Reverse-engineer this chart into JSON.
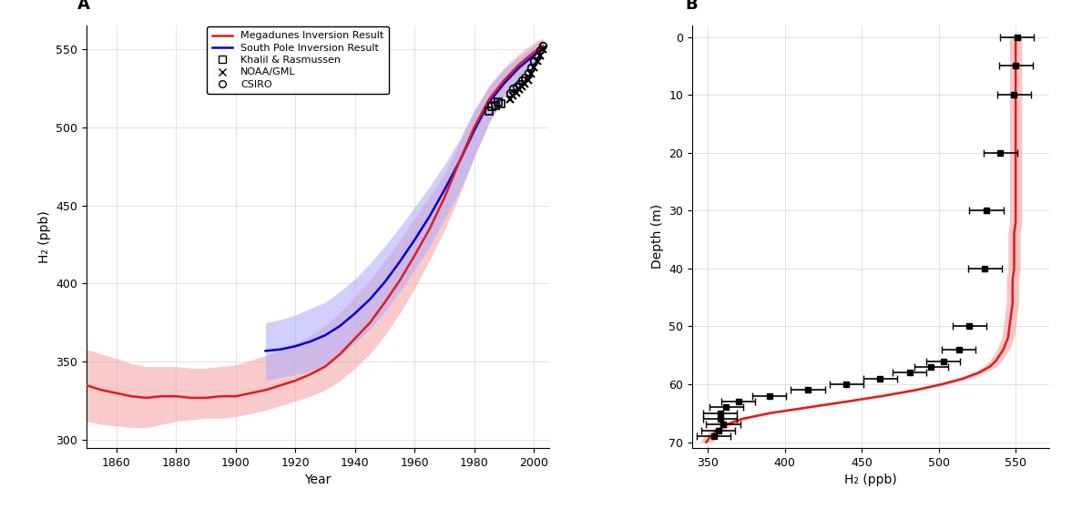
{
  "panel_A": {
    "title": "A",
    "xlabel": "Year",
    "ylabel": "H₂ (ppb)",
    "xlim": [
      1850,
      2005
    ],
    "ylim": [
      295,
      565
    ],
    "yticks": [
      300,
      350,
      400,
      450,
      500,
      550
    ],
    "xticks": [
      1860,
      1880,
      1900,
      1920,
      1940,
      1960,
      1980,
      2000
    ],
    "red_line_color": "#e31a1c",
    "red_fill_color": "#f4a0a0",
    "blue_line_color": "#0000cc",
    "blue_fill_color": "#aaaaff",
    "red_x": [
      1850,
      1855,
      1860,
      1865,
      1870,
      1875,
      1880,
      1885,
      1890,
      1895,
      1900,
      1905,
      1910,
      1915,
      1920,
      1925,
      1930,
      1935,
      1940,
      1945,
      1950,
      1955,
      1960,
      1965,
      1970,
      1975,
      1980,
      1985,
      1990,
      1995,
      2000,
      2003
    ],
    "red_y": [
      335,
      332,
      330,
      328,
      327,
      328,
      328,
      327,
      327,
      328,
      328,
      330,
      332,
      335,
      338,
      342,
      347,
      355,
      365,
      375,
      388,
      402,
      418,
      435,
      455,
      478,
      500,
      518,
      530,
      540,
      548,
      552
    ],
    "red_upper": [
      358,
      355,
      352,
      349,
      347,
      347,
      347,
      346,
      346,
      347,
      348,
      351,
      354,
      358,
      362,
      367,
      373,
      382,
      392,
      402,
      415,
      428,
      442,
      456,
      470,
      490,
      510,
      527,
      538,
      547,
      554,
      557
    ],
    "red_lower": [
      312,
      310,
      309,
      308,
      308,
      310,
      312,
      313,
      314,
      314,
      315,
      317,
      319,
      322,
      325,
      328,
      332,
      338,
      346,
      355,
      367,
      381,
      397,
      415,
      434,
      456,
      481,
      503,
      520,
      532,
      542,
      548
    ],
    "blue_x": [
      1910,
      1915,
      1920,
      1925,
      1930,
      1935,
      1940,
      1945,
      1950,
      1955,
      1960,
      1965,
      1970,
      1975,
      1980,
      1985,
      1990,
      1995,
      2000,
      2003
    ],
    "blue_y": [
      357,
      358,
      360,
      363,
      367,
      373,
      381,
      390,
      401,
      414,
      428,
      443,
      460,
      478,
      498,
      516,
      528,
      538,
      546,
      551
    ],
    "blue_upper": [
      375,
      377,
      380,
      384,
      388,
      395,
      403,
      413,
      424,
      436,
      449,
      462,
      476,
      492,
      511,
      526,
      537,
      545,
      552,
      556
    ],
    "blue_lower": [
      338,
      340,
      342,
      344,
      348,
      354,
      362,
      371,
      382,
      395,
      409,
      424,
      441,
      459,
      481,
      503,
      519,
      531,
      541,
      547
    ],
    "obs_khalil_x": [
      1985,
      1986,
      1987,
      1988,
      1989
    ],
    "obs_khalil_y": [
      510,
      513,
      514,
      516,
      515
    ],
    "obs_noaa_x": [
      1992,
      1993,
      1994,
      1995,
      1996,
      1997,
      1998,
      1999,
      2000,
      2001,
      2002,
      2003
    ],
    "obs_noaa_y": [
      518,
      520,
      522,
      524,
      526,
      528,
      530,
      534,
      538,
      542,
      546,
      550
    ],
    "obs_csiro_x": [
      1992,
      1993,
      1994,
      1995,
      1996,
      1997,
      1998,
      1999,
      2000,
      2001,
      2002,
      2003
    ],
    "obs_csiro_y": [
      522,
      525,
      526,
      528,
      530,
      532,
      535,
      538,
      542,
      545,
      549,
      552
    ]
  },
  "panel_B": {
    "title": "B",
    "xlabel": "H₂ (ppb)",
    "ylabel": "Depth (m)",
    "xlim": [
      340,
      572
    ],
    "ylim": [
      71,
      -2
    ],
    "yticks": [
      0,
      10,
      20,
      30,
      40,
      50,
      60,
      70
    ],
    "xticks": [
      350,
      400,
      450,
      500,
      550
    ],
    "red_line_color": "#e31a1c",
    "red_fill_color": "#f4a0a0",
    "profile_depth": [
      0,
      2,
      4,
      6,
      8,
      10,
      12,
      14,
      16,
      18,
      20,
      22,
      24,
      26,
      28,
      30,
      32,
      34,
      36,
      38,
      40,
      42,
      44,
      46,
      48,
      50,
      52,
      54,
      56,
      57,
      58,
      59,
      60,
      61,
      62,
      63,
      64,
      65,
      66,
      67,
      68,
      69,
      70
    ],
    "profile_h2": [
      550,
      550,
      550,
      550,
      550,
      550,
      550,
      550,
      550,
      550,
      550,
      550,
      550,
      550,
      550,
      550,
      550,
      549,
      549,
      549,
      549,
      548,
      548,
      548,
      547,
      546,
      545,
      542,
      537,
      533,
      526,
      516,
      502,
      485,
      464,
      440,
      415,
      390,
      372,
      362,
      356,
      352,
      349
    ],
    "profile_upper": [
      554,
      554,
      554,
      554,
      554,
      554,
      554,
      554,
      554,
      554,
      554,
      554,
      554,
      554,
      554,
      554,
      554,
      553,
      553,
      553,
      553,
      552,
      552,
      552,
      551,
      550,
      549,
      546,
      541,
      537,
      530,
      520,
      506,
      489,
      468,
      444,
      419,
      394,
      376,
      366,
      360,
      356,
      353
    ],
    "profile_lower": [
      546,
      546,
      546,
      546,
      546,
      546,
      546,
      546,
      546,
      546,
      546,
      546,
      546,
      546,
      546,
      546,
      546,
      545,
      545,
      545,
      545,
      544,
      544,
      544,
      543,
      542,
      541,
      538,
      533,
      529,
      522,
      512,
      498,
      481,
      460,
      436,
      411,
      386,
      368,
      358,
      352,
      348,
      345
    ],
    "data_depths": [
      0,
      5,
      10,
      20,
      30,
      40,
      50,
      54,
      56,
      57,
      58,
      59,
      60,
      61,
      62,
      63,
      64,
      65,
      66,
      67,
      68,
      69
    ],
    "data_h2": [
      551,
      550,
      549,
      540,
      531,
      530,
      520,
      513,
      503,
      495,
      481,
      462,
      440,
      415,
      390,
      370,
      362,
      358,
      358,
      360,
      357,
      354
    ],
    "data_xerr": [
      11,
      11,
      11,
      11,
      11,
      11,
      11,
      11,
      11,
      11,
      11,
      11,
      11,
      11,
      11,
      11,
      11,
      11,
      11,
      11,
      11,
      11
    ]
  },
  "background_color": "#ffffff",
  "grid_color": "#cccccc",
  "grid_alpha": 0.8
}
